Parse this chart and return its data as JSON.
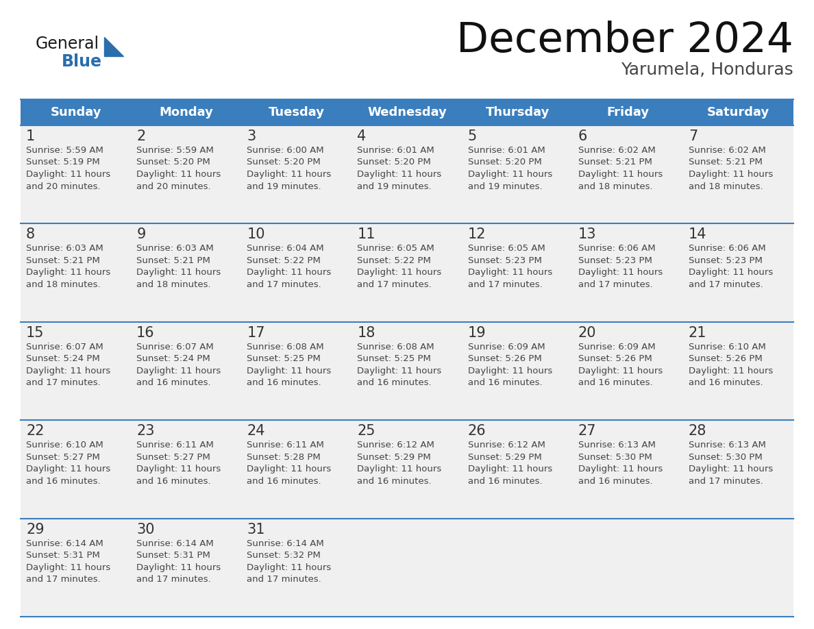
{
  "title": "December 2024",
  "subtitle": "Yarumela, Honduras",
  "header_color": "#3A7EBD",
  "header_text_color": "#FFFFFF",
  "day_names": [
    "Sunday",
    "Monday",
    "Tuesday",
    "Wednesday",
    "Thursday",
    "Friday",
    "Saturday"
  ],
  "weeks": [
    [
      {
        "day": 1,
        "sunrise": "5:59 AM",
        "sunset": "5:19 PM",
        "daylight": "11 hours and 20 minutes."
      },
      {
        "day": 2,
        "sunrise": "5:59 AM",
        "sunset": "5:20 PM",
        "daylight": "11 hours and 20 minutes."
      },
      {
        "day": 3,
        "sunrise": "6:00 AM",
        "sunset": "5:20 PM",
        "daylight": "11 hours and 19 minutes."
      },
      {
        "day": 4,
        "sunrise": "6:01 AM",
        "sunset": "5:20 PM",
        "daylight": "11 hours and 19 minutes."
      },
      {
        "day": 5,
        "sunrise": "6:01 AM",
        "sunset": "5:20 PM",
        "daylight": "11 hours and 19 minutes."
      },
      {
        "day": 6,
        "sunrise": "6:02 AM",
        "sunset": "5:21 PM",
        "daylight": "11 hours and 18 minutes."
      },
      {
        "day": 7,
        "sunrise": "6:02 AM",
        "sunset": "5:21 PM",
        "daylight": "11 hours and 18 minutes."
      }
    ],
    [
      {
        "day": 8,
        "sunrise": "6:03 AM",
        "sunset": "5:21 PM",
        "daylight": "11 hours and 18 minutes."
      },
      {
        "day": 9,
        "sunrise": "6:03 AM",
        "sunset": "5:21 PM",
        "daylight": "11 hours and 18 minutes."
      },
      {
        "day": 10,
        "sunrise": "6:04 AM",
        "sunset": "5:22 PM",
        "daylight": "11 hours and 17 minutes."
      },
      {
        "day": 11,
        "sunrise": "6:05 AM",
        "sunset": "5:22 PM",
        "daylight": "11 hours and 17 minutes."
      },
      {
        "day": 12,
        "sunrise": "6:05 AM",
        "sunset": "5:23 PM",
        "daylight": "11 hours and 17 minutes."
      },
      {
        "day": 13,
        "sunrise": "6:06 AM",
        "sunset": "5:23 PM",
        "daylight": "11 hours and 17 minutes."
      },
      {
        "day": 14,
        "sunrise": "6:06 AM",
        "sunset": "5:23 PM",
        "daylight": "11 hours and 17 minutes."
      }
    ],
    [
      {
        "day": 15,
        "sunrise": "6:07 AM",
        "sunset": "5:24 PM",
        "daylight": "11 hours and 17 minutes."
      },
      {
        "day": 16,
        "sunrise": "6:07 AM",
        "sunset": "5:24 PM",
        "daylight": "11 hours and 16 minutes."
      },
      {
        "day": 17,
        "sunrise": "6:08 AM",
        "sunset": "5:25 PM",
        "daylight": "11 hours and 16 minutes."
      },
      {
        "day": 18,
        "sunrise": "6:08 AM",
        "sunset": "5:25 PM",
        "daylight": "11 hours and 16 minutes."
      },
      {
        "day": 19,
        "sunrise": "6:09 AM",
        "sunset": "5:26 PM",
        "daylight": "11 hours and 16 minutes."
      },
      {
        "day": 20,
        "sunrise": "6:09 AM",
        "sunset": "5:26 PM",
        "daylight": "11 hours and 16 minutes."
      },
      {
        "day": 21,
        "sunrise": "6:10 AM",
        "sunset": "5:26 PM",
        "daylight": "11 hours and 16 minutes."
      }
    ],
    [
      {
        "day": 22,
        "sunrise": "6:10 AM",
        "sunset": "5:27 PM",
        "daylight": "11 hours and 16 minutes."
      },
      {
        "day": 23,
        "sunrise": "6:11 AM",
        "sunset": "5:27 PM",
        "daylight": "11 hours and 16 minutes."
      },
      {
        "day": 24,
        "sunrise": "6:11 AM",
        "sunset": "5:28 PM",
        "daylight": "11 hours and 16 minutes."
      },
      {
        "day": 25,
        "sunrise": "6:12 AM",
        "sunset": "5:29 PM",
        "daylight": "11 hours and 16 minutes."
      },
      {
        "day": 26,
        "sunrise": "6:12 AM",
        "sunset": "5:29 PM",
        "daylight": "11 hours and 16 minutes."
      },
      {
        "day": 27,
        "sunrise": "6:13 AM",
        "sunset": "5:30 PM",
        "daylight": "11 hours and 16 minutes."
      },
      {
        "day": 28,
        "sunrise": "6:13 AM",
        "sunset": "5:30 PM",
        "daylight": "11 hours and 17 minutes."
      }
    ],
    [
      {
        "day": 29,
        "sunrise": "6:14 AM",
        "sunset": "5:31 PM",
        "daylight": "11 hours and 17 minutes."
      },
      {
        "day": 30,
        "sunrise": "6:14 AM",
        "sunset": "5:31 PM",
        "daylight": "11 hours and 17 minutes."
      },
      {
        "day": 31,
        "sunrise": "6:14 AM",
        "sunset": "5:32 PM",
        "daylight": "11 hours and 17 minutes."
      },
      null,
      null,
      null,
      null
    ]
  ],
  "bg_color": "#FFFFFF",
  "cell_bg_color": "#F0F0F0",
  "text_color": "#444444",
  "line_color": "#3A7EBD",
  "logo_general_color": "#1a1a1a",
  "logo_blue_color": "#2A6EAD"
}
